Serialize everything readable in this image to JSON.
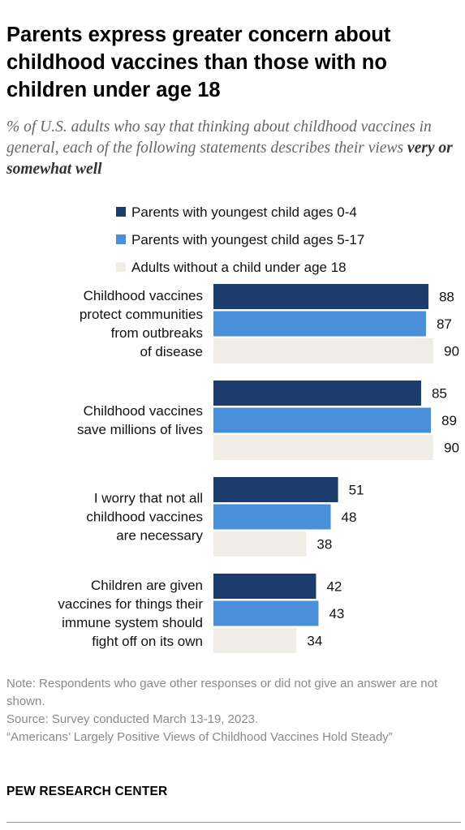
{
  "title": "Parents express greater concern about childhood vaccines than those with no children under age 18",
  "subtitle_plain": "% of U.S. adults who say that thinking about childhood vaccines in general, each of the following statements describes their views",
  "subtitle_emphasis": "very or somewhat well",
  "notes": {
    "note": "Note: Respondents who gave other responses or did not give an answer are not shown.",
    "source": "Source: Survey conducted March 13-19, 2023.",
    "report": "“Americans’ Largely Positive Views of Childhood Vaccines Hold Steady”"
  },
  "brand": "PEW RESEARCH CENTER",
  "colors": {
    "series_0": "#1d3c6e",
    "series_1": "#4a8fd9",
    "series_2": "#efede5"
  },
  "chart_data": {
    "type": "bar",
    "orientation": "horizontal",
    "categories": [
      [
        "Childhood vaccines",
        "protect communities",
        "from outbreaks",
        "of disease"
      ],
      [
        "Childhood vaccines",
        "save millions of lives"
      ],
      [
        "I worry that not all",
        "childhood vaccines",
        "are necessary"
      ],
      [
        "Children are given",
        "vaccines for things their",
        "immune system should",
        "fight off on its own"
      ]
    ],
    "series": [
      {
        "name": "Parents with youngest child ages 0-4",
        "values": [
          88,
          85,
          51,
          42
        ]
      },
      {
        "name": "Parents with youngest child ages 5-17",
        "values": [
          87,
          89,
          48,
          43
        ]
      },
      {
        "name": "Adults without a child under age 18",
        "values": [
          90,
          90,
          38,
          34
        ]
      }
    ],
    "xlim": [
      0,
      90
    ],
    "legend_position": "top",
    "grid": false,
    "data_labels": true
  }
}
